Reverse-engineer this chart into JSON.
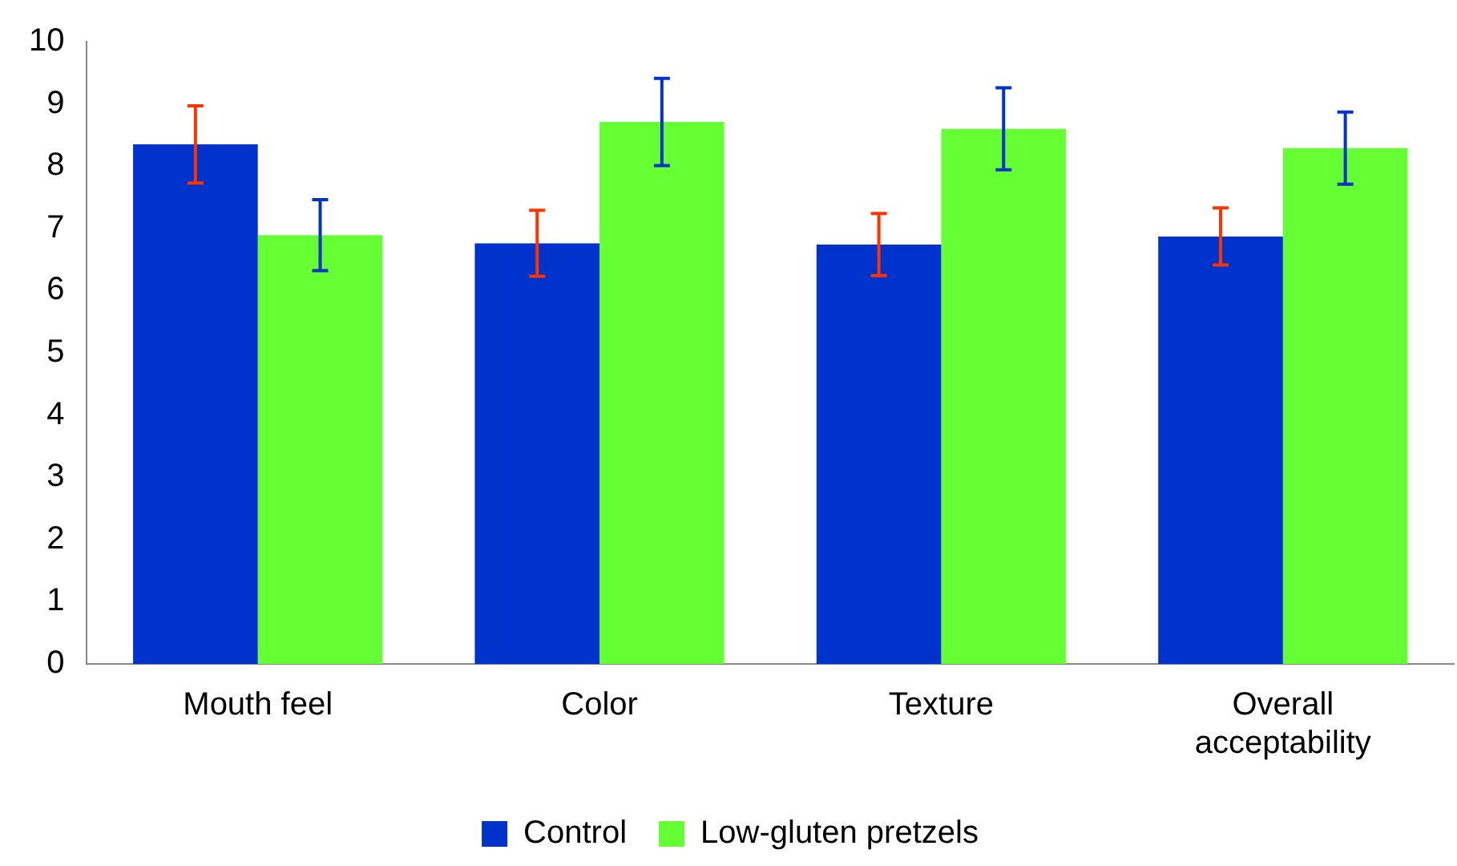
{
  "chart_data": {
    "type": "bar",
    "categories": [
      "Mouth feel",
      "Color",
      "Texture",
      "Overall acceptability"
    ],
    "series": [
      {
        "name": "Control",
        "color": "#0033cc",
        "values": [
          8.35,
          6.76,
          6.74,
          6.87
        ],
        "errors": [
          0.62,
          0.53,
          0.5,
          0.46
        ]
      },
      {
        "name": "Low-gluten pretzels",
        "color": "#66ff33",
        "values": [
          6.89,
          8.71,
          8.6,
          8.29
        ],
        "errors": [
          0.57,
          0.7,
          0.66,
          0.58
        ]
      }
    ],
    "ylim": [
      0,
      10
    ],
    "yticks": [
      0,
      1,
      2,
      3,
      4,
      5,
      6,
      7,
      8,
      9,
      10
    ],
    "grid": false,
    "legend": "bottom"
  }
}
